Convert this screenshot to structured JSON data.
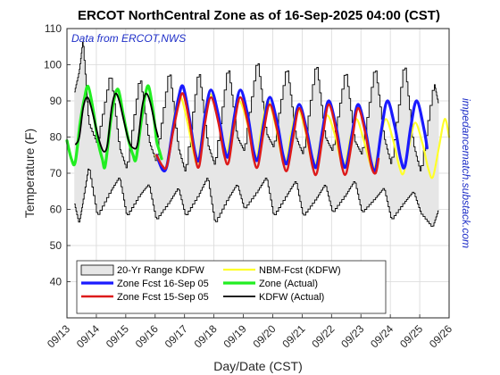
{
  "chart_data": {
    "type": "line",
    "title": "ERCOT NorthCentral Zone as of 16-Sep-2025 04:00 (CST)",
    "annotation": "Data from ERCOT,NWS",
    "side_note": "impedancematch.substack.com",
    "xlabel": "Day/Date (CST)",
    "ylabel": "Temperature (F)",
    "xlim": [
      0,
      13
    ],
    "ylim": [
      30,
      110
    ],
    "yticks": [
      40,
      50,
      60,
      70,
      80,
      90,
      100,
      110
    ],
    "xtick_labels": [
      "09/13",
      "09/14",
      "09/15",
      "09/16",
      "09/17",
      "09/18",
      "09/19",
      "09/20",
      "09/21",
      "09/22",
      "09/23",
      "09/24",
      "09/25",
      "09/26"
    ],
    "legend_location": "lower-left",
    "range": {
      "name": "20-Yr Range KDFW",
      "color": "#e6e6e6",
      "upper": [
        [
          0.25,
          92
        ],
        [
          0.42,
          98
        ],
        [
          0.55,
          107
        ],
        [
          0.75,
          84
        ],
        [
          1.05,
          78
        ],
        [
          1.5,
          98
        ],
        [
          1.8,
          77
        ],
        [
          2.05,
          71
        ],
        [
          2.5,
          97
        ],
        [
          2.8,
          79
        ],
        [
          3.05,
          73
        ],
        [
          3.5,
          99
        ],
        [
          3.8,
          77
        ],
        [
          4.05,
          70
        ],
        [
          4.5,
          99
        ],
        [
          4.8,
          78
        ],
        [
          5.05,
          72
        ],
        [
          5.5,
          100
        ],
        [
          5.8,
          80
        ],
        [
          6.05,
          76
        ],
        [
          6.5,
          102
        ],
        [
          6.8,
          81
        ],
        [
          7.05,
          77
        ],
        [
          7.5,
          100
        ],
        [
          7.8,
          80
        ],
        [
          8.05,
          75
        ],
        [
          8.5,
          101
        ],
        [
          8.8,
          80
        ],
        [
          9.05,
          76
        ],
        [
          9.5,
          99
        ],
        [
          9.8,
          79
        ],
        [
          10.05,
          75
        ],
        [
          10.5,
          100
        ],
        [
          10.8,
          80
        ],
        [
          11.05,
          72
        ],
        [
          11.5,
          101
        ],
        [
          11.8,
          78
        ],
        [
          12.05,
          70
        ],
        [
          12.5,
          95
        ],
        [
          12.65,
          89
        ]
      ],
      "lower": [
        [
          0.25,
          62
        ],
        [
          0.42,
          56
        ],
        [
          0.55,
          62
        ],
        [
          0.75,
          72
        ],
        [
          1.05,
          58
        ],
        [
          1.5,
          65
        ],
        [
          1.8,
          69
        ],
        [
          2.05,
          58
        ],
        [
          2.5,
          64
        ],
        [
          2.8,
          67
        ],
        [
          3.05,
          57
        ],
        [
          3.5,
          62
        ],
        [
          3.8,
          66
        ],
        [
          4.05,
          58
        ],
        [
          4.5,
          64
        ],
        [
          4.8,
          69
        ],
        [
          5.05,
          56
        ],
        [
          5.5,
          63
        ],
        [
          5.8,
          67
        ],
        [
          6.05,
          60
        ],
        [
          6.5,
          65
        ],
        [
          6.8,
          69
        ],
        [
          7.05,
          58
        ],
        [
          7.5,
          64
        ],
        [
          7.8,
          68
        ],
        [
          8.05,
          58
        ],
        [
          8.5,
          63
        ],
        [
          8.8,
          67
        ],
        [
          9.05,
          59
        ],
        [
          9.5,
          64
        ],
        [
          9.8,
          68
        ],
        [
          10.05,
          59
        ],
        [
          10.5,
          63
        ],
        [
          10.8,
          66
        ],
        [
          11.05,
          57
        ],
        [
          11.5,
          62
        ],
        [
          11.8,
          65
        ],
        [
          12.05,
          59
        ],
        [
          12.45,
          55
        ],
        [
          12.65,
          60
        ]
      ]
    },
    "series": [
      {
        "name": "NBM-Fcst (KDFW)",
        "color": "#ffff2a",
        "width": 2.2,
        "points": [
          [
            3.0,
            75
          ],
          [
            3.2,
            72
          ],
          [
            3.35,
            71
          ],
          [
            3.55,
            80
          ],
          [
            3.7,
            88
          ],
          [
            3.88,
            91
          ],
          [
            4.1,
            84
          ],
          [
            4.3,
            76
          ],
          [
            4.45,
            73
          ],
          [
            4.65,
            84
          ],
          [
            4.85,
            92
          ],
          [
            5.1,
            86
          ],
          [
            5.3,
            78
          ],
          [
            5.45,
            76
          ],
          [
            5.65,
            84
          ],
          [
            5.85,
            90
          ],
          [
            6.1,
            85
          ],
          [
            6.3,
            77
          ],
          [
            6.45,
            74
          ],
          [
            6.65,
            84
          ],
          [
            6.85,
            90
          ],
          [
            7.1,
            83
          ],
          [
            7.3,
            75
          ],
          [
            7.45,
            73
          ],
          [
            7.65,
            82
          ],
          [
            7.85,
            88
          ],
          [
            8.1,
            82
          ],
          [
            8.3,
            74
          ],
          [
            8.45,
            72
          ],
          [
            8.65,
            80
          ],
          [
            8.85,
            86
          ],
          [
            9.1,
            81
          ],
          [
            9.3,
            74
          ],
          [
            9.45,
            72
          ],
          [
            9.65,
            80
          ],
          [
            9.85,
            85
          ],
          [
            10.1,
            79
          ],
          [
            10.3,
            73
          ],
          [
            10.45,
            71
          ],
          [
            10.65,
            79
          ],
          [
            10.85,
            85
          ],
          [
            11.1,
            79
          ],
          [
            11.3,
            72
          ],
          [
            11.45,
            70
          ],
          [
            11.65,
            78
          ],
          [
            11.85,
            84
          ],
          [
            12.1,
            78
          ],
          [
            12.3,
            71
          ],
          [
            12.45,
            69
          ],
          [
            12.65,
            77
          ],
          [
            12.85,
            85
          ],
          [
            13.0,
            80
          ]
        ]
      },
      {
        "name": "Zone Fcst 16-Sep 05",
        "color": "#1a1aff",
        "width": 3.2,
        "points": [
          [
            3.05,
            75
          ],
          [
            3.25,
            71
          ],
          [
            3.4,
            72
          ],
          [
            3.6,
            82
          ],
          [
            3.8,
            91
          ],
          [
            3.95,
            94
          ],
          [
            4.15,
            86
          ],
          [
            4.35,
            76
          ],
          [
            4.5,
            74
          ],
          [
            4.7,
            86
          ],
          [
            4.9,
            93
          ],
          [
            5.15,
            86
          ],
          [
            5.35,
            77
          ],
          [
            5.5,
            75
          ],
          [
            5.7,
            86
          ],
          [
            5.9,
            93
          ],
          [
            6.15,
            86
          ],
          [
            6.35,
            76
          ],
          [
            6.5,
            74
          ],
          [
            6.7,
            84
          ],
          [
            6.9,
            91
          ],
          [
            7.15,
            84
          ],
          [
            7.35,
            75
          ],
          [
            7.5,
            73
          ],
          [
            7.7,
            82
          ],
          [
            7.9,
            89
          ],
          [
            8.15,
            82
          ],
          [
            8.35,
            74
          ],
          [
            8.5,
            72
          ],
          [
            8.7,
            82
          ],
          [
            8.9,
            90
          ],
          [
            9.15,
            83
          ],
          [
            9.35,
            74
          ],
          [
            9.5,
            72
          ],
          [
            9.7,
            81
          ],
          [
            9.9,
            89
          ],
          [
            10.15,
            82
          ],
          [
            10.35,
            73
          ],
          [
            10.5,
            71
          ],
          [
            10.7,
            82
          ],
          [
            10.9,
            90
          ],
          [
            11.15,
            83
          ],
          [
            11.35,
            74
          ],
          [
            11.5,
            72
          ],
          [
            11.7,
            83
          ],
          [
            11.9,
            90
          ],
          [
            12.15,
            82
          ],
          [
            12.25,
            77
          ]
        ]
      },
      {
        "name": "Zone Fcst 15-Sep 05",
        "color": "#dd1a1a",
        "width": 2.4,
        "points": [
          [
            3.05,
            75
          ],
          [
            3.25,
            72
          ],
          [
            3.4,
            72
          ],
          [
            3.6,
            81
          ],
          [
            3.8,
            89
          ],
          [
            3.95,
            92
          ],
          [
            4.15,
            85
          ],
          [
            4.35,
            75
          ],
          [
            4.5,
            72
          ],
          [
            4.7,
            84
          ],
          [
            4.9,
            91
          ],
          [
            5.15,
            84
          ],
          [
            5.35,
            75
          ],
          [
            5.5,
            73
          ],
          [
            5.7,
            84
          ],
          [
            5.9,
            91
          ],
          [
            6.15,
            84
          ],
          [
            6.35,
            74
          ],
          [
            6.5,
            72
          ],
          [
            6.7,
            82
          ],
          [
            6.9,
            89
          ],
          [
            7.15,
            82
          ],
          [
            7.35,
            73
          ],
          [
            7.5,
            71
          ],
          [
            7.7,
            80
          ],
          [
            7.9,
            88
          ],
          [
            8.15,
            81
          ],
          [
            8.35,
            72
          ],
          [
            8.5,
            70
          ],
          [
            8.7,
            80
          ],
          [
            8.9,
            89
          ],
          [
            9.15,
            82
          ],
          [
            9.35,
            72
          ],
          [
            9.5,
            70
          ],
          [
            9.7,
            79
          ],
          [
            9.9,
            88
          ],
          [
            10.15,
            81
          ],
          [
            10.35,
            72
          ],
          [
            10.5,
            70
          ],
          [
            10.6,
            74
          ]
        ]
      },
      {
        "name": "Zone (Actual)",
        "color": "#22ee22",
        "width": 3.2,
        "points": [
          [
            0.0,
            79
          ],
          [
            0.15,
            74
          ],
          [
            0.28,
            73
          ],
          [
            0.45,
            84
          ],
          [
            0.6,
            91
          ],
          [
            0.72,
            94
          ],
          [
            0.88,
            88
          ],
          [
            1.05,
            79
          ],
          [
            1.2,
            74
          ],
          [
            1.3,
            72
          ],
          [
            1.48,
            84
          ],
          [
            1.62,
            91
          ],
          [
            1.75,
            93
          ],
          [
            1.92,
            86
          ],
          [
            2.1,
            79
          ],
          [
            2.25,
            75
          ],
          [
            2.35,
            74
          ],
          [
            2.52,
            84
          ],
          [
            2.65,
            91
          ],
          [
            2.78,
            94
          ],
          [
            2.95,
            86
          ],
          [
            3.05,
            79
          ],
          [
            3.15,
            76
          ],
          [
            3.22,
            74
          ]
        ]
      },
      {
        "name": "KDFW (Actual)",
        "color": "#000000",
        "width": 1.8,
        "points": [
          [
            0.3,
            78
          ],
          [
            0.42,
            80
          ],
          [
            0.55,
            88
          ],
          [
            0.68,
            91
          ],
          [
            0.8,
            89
          ],
          [
            0.95,
            84
          ],
          [
            1.1,
            79
          ],
          [
            1.25,
            76
          ],
          [
            1.38,
            78
          ],
          [
            1.52,
            88
          ],
          [
            1.65,
            92
          ],
          [
            1.78,
            90
          ],
          [
            1.95,
            84
          ],
          [
            2.1,
            79
          ],
          [
            2.25,
            77
          ],
          [
            2.4,
            78
          ],
          [
            2.55,
            88
          ],
          [
            2.68,
            92
          ],
          [
            2.82,
            90
          ],
          [
            2.98,
            84
          ],
          [
            3.1,
            80
          ]
        ]
      }
    ]
  }
}
